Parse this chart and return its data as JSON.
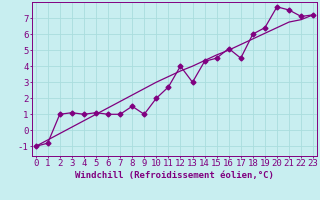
{
  "x": [
    0,
    1,
    2,
    3,
    4,
    5,
    6,
    7,
    8,
    9,
    10,
    11,
    12,
    13,
    14,
    15,
    16,
    17,
    18,
    19,
    20,
    21,
    22,
    23
  ],
  "y_data": [
    -1.0,
    -0.8,
    1.0,
    1.1,
    1.0,
    1.1,
    1.0,
    1.0,
    1.5,
    1.0,
    2.0,
    2.7,
    4.0,
    3.0,
    4.3,
    4.5,
    5.1,
    4.5,
    6.0,
    6.4,
    7.7,
    7.5,
    7.1,
    7.2
  ],
  "y_trend": [
    -1.0,
    -0.6,
    -0.2,
    0.2,
    0.6,
    1.0,
    1.4,
    1.8,
    2.2,
    2.6,
    3.0,
    3.35,
    3.7,
    4.0,
    4.35,
    4.7,
    5.0,
    5.35,
    5.7,
    6.05,
    6.4,
    6.75,
    6.9,
    7.2
  ],
  "line_color": "#800080",
  "bg_color": "#c8eef0",
  "grid_color": "#aadddd",
  "xlabel": "Windchill (Refroidissement éolien,°C)",
  "ylabel_ticks": [
    "-1",
    "0",
    "1",
    "2",
    "3",
    "4",
    "5",
    "6",
    "7"
  ],
  "yticks": [
    -1,
    0,
    1,
    2,
    3,
    4,
    5,
    6,
    7
  ],
  "xticks": [
    0,
    1,
    2,
    3,
    4,
    5,
    6,
    7,
    8,
    9,
    10,
    11,
    12,
    13,
    14,
    15,
    16,
    17,
    18,
    19,
    20,
    21,
    22,
    23
  ],
  "ylim": [
    -1.6,
    8.0
  ],
  "xlim": [
    -0.3,
    23.3
  ],
  "xlabel_fontsize": 6.5,
  "tick_fontsize": 6.5,
  "marker": "D",
  "marker_size": 2.5,
  "line_width": 0.9
}
